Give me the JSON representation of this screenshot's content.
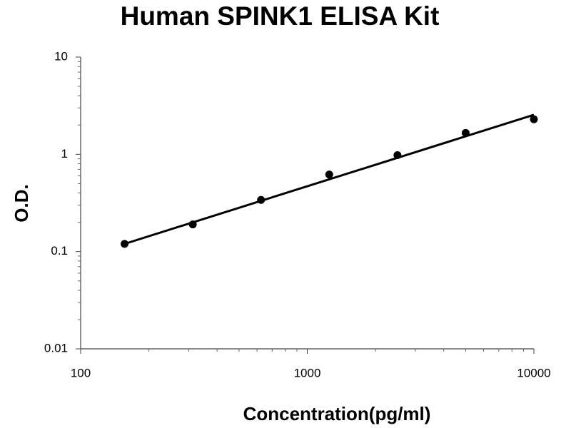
{
  "chart_data": {
    "type": "scatter",
    "title": "Human SPINK1 ELISA Kit",
    "x_label": "Concentration(pg/ml)",
    "y_label": "O.D.",
    "x": [
      156.25,
      312.5,
      625,
      1250,
      2500,
      5000,
      10000
    ],
    "values": [
      0.12,
      0.19,
      0.34,
      0.62,
      0.98,
      1.66,
      2.29
    ],
    "color": "#000000",
    "fit": {
      "x": [
        156.25,
        10000
      ],
      "values": [
        0.12,
        2.55
      ]
    },
    "x_log": true,
    "y_log": true,
    "xlim": [
      100,
      10000
    ],
    "ylim": [
      0.01,
      10
    ],
    "xticks": [
      100,
      1000,
      10000
    ],
    "yticks": [
      0.01,
      0.1,
      1,
      10
    ]
  }
}
